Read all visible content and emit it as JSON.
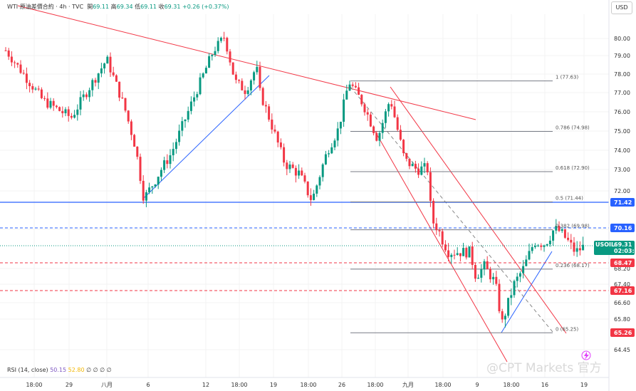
{
  "header": {
    "symbol": "WTI",
    "name": "原油差價合約",
    "interval": "4h",
    "source": "TVC",
    "open_label": "開",
    "open": "69.11",
    "high_label": "高",
    "high": "69.34",
    "low_label": "低",
    "low": "69.11",
    "close_label": "收",
    "close": "69.31",
    "change": "+0.26 (+0.37%)"
  },
  "currency": "USD",
  "rsi": {
    "label": "RSI (14, close)",
    "value1": "50.15",
    "value2": "52.80",
    "placeholders": "∅ ∅ ∅ ∅"
  },
  "watermark": "@CPT Markets 官方",
  "colors": {
    "up": "#089981",
    "down": "#f23645",
    "trend": "#f23645",
    "support": "#2962ff",
    "fib": "#787b86"
  },
  "chart_data": {
    "type": "candlestick",
    "y_ticks": [
      "80.00",
      "79.00",
      "78.00",
      "77.00",
      "76.00",
      "75.00",
      "74.00",
      "73.00",
      "72.00",
      "70.00",
      "68.20",
      "67.40",
      "66.60",
      "65.80",
      "64.45"
    ],
    "x_ticks": [
      "18:00",
      "29",
      "八月",
      "6",
      "12",
      "18:00",
      "19",
      "18:00",
      "26",
      "18:00",
      "九月",
      "18:00",
      "9",
      "18:00",
      "16",
      "19"
    ],
    "price_tags": [
      {
        "label": "71.42",
        "value": 71.42,
        "color": "#2962ff"
      },
      {
        "label": "70.16",
        "value": 70.16,
        "color": "#2962ff"
      },
      {
        "label": "USOIL",
        "value": 69.31,
        "color": "#089981",
        "price": "69.31",
        "time": "02:03:06"
      },
      {
        "label": "68.47",
        "value": 68.47,
        "color": "#f23645"
      },
      {
        "label": "67.16",
        "value": 67.16,
        "color": "#f23645"
      },
      {
        "label": "65.26",
        "value": 65.26,
        "color": "#f23645"
      }
    ],
    "fib_levels": [
      {
        "ratio": "1",
        "value": 77.63
      },
      {
        "ratio": "0.786",
        "value": 74.98
      },
      {
        "ratio": "0.618",
        "value": 72.9
      },
      {
        "ratio": "0.5",
        "value": 71.44
      },
      {
        "ratio": "0.382",
        "value": 69.98
      },
      {
        "ratio": "0.236",
        "value": 68.17
      },
      {
        "ratio": "0",
        "value": 65.25
      }
    ],
    "horizontal_levels": [
      {
        "value": 71.42,
        "style": "solid",
        "color": "#2962ff"
      },
      {
        "value": 70.16,
        "style": "dashed",
        "color": "#2962ff"
      },
      {
        "value": 69.31,
        "style": "dotted",
        "color": "#089981"
      },
      {
        "value": 68.47,
        "style": "dashed",
        "color": "#f23645"
      },
      {
        "value": 67.16,
        "style": "dashed",
        "color": "#f23645"
      }
    ],
    "key_points": [
      {
        "x": "Jul 24",
        "y": 79.3
      },
      {
        "x": "Aug 5",
        "y": 71.6
      },
      {
        "x": "Aug 12",
        "y": 80.1
      },
      {
        "x": "Aug 14",
        "y": 77.0
      },
      {
        "x": "Aug 21",
        "y": 71.5
      },
      {
        "x": "Aug 26",
        "y": 77.6
      },
      {
        "x": "Sep 1",
        "y": 73.0
      },
      {
        "x": "Sep 5",
        "y": 69.0
      },
      {
        "x": "Sep 10",
        "y": 65.25
      },
      {
        "x": "Sep 17",
        "y": 70.2
      },
      {
        "x": "Sep 19",
        "y": 69.31
      }
    ]
  }
}
